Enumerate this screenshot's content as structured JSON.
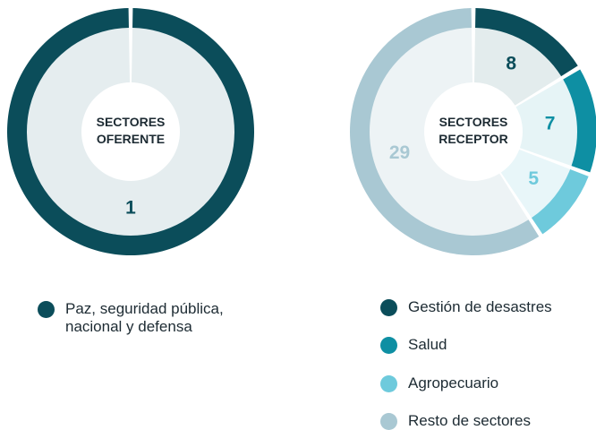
{
  "chart_data": [
    {
      "type": "pie",
      "center_label": [
        "SECTORES",
        "OFERENTE"
      ],
      "categories": [
        "Paz, seguridad pública, nacional y defensa"
      ],
      "values": [
        1
      ],
      "colors": [
        "#0b4d5a"
      ],
      "fill_colors": [
        "#e5edef"
      ]
    },
    {
      "type": "pie",
      "center_label": [
        "SECTORES",
        "RECEPTOR"
      ],
      "categories": [
        "Gestión de desastres",
        "Salud",
        "Agropecuario",
        "Resto de sectores"
      ],
      "values": [
        8,
        7,
        5,
        29
      ],
      "colors": [
        "#0b4d5a",
        "#0e8fa3",
        "#6ecadc",
        "#a9c8d3"
      ],
      "fill_colors": [
        "#e3eced",
        "#e6f4f6",
        "#e8f6f9",
        "#edf3f5"
      ]
    }
  ]
}
